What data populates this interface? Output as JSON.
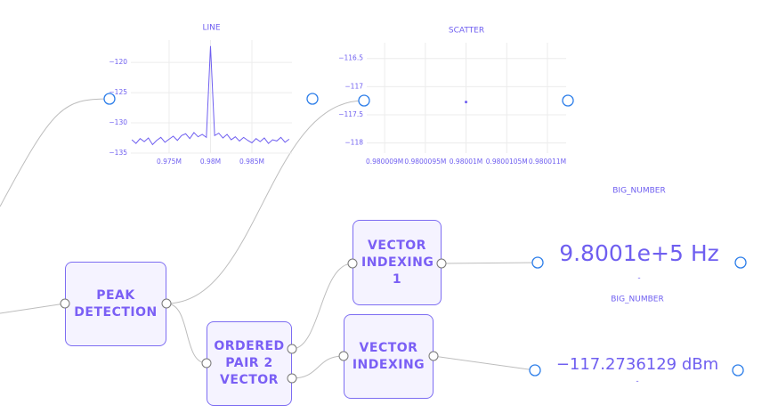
{
  "line_plot": {
    "type": "line",
    "title": "LINE",
    "x": [
      970500,
      971000,
      971500,
      972000,
      972500,
      973000,
      973500,
      974000,
      974500,
      975000,
      975500,
      976000,
      976500,
      977000,
      977500,
      978000,
      978500,
      979000,
      979500,
      980000,
      980500,
      981000,
      981500,
      982000,
      982500,
      983000,
      983500,
      984000,
      984500,
      985000,
      985500,
      986000,
      986500,
      987000,
      987500,
      988000,
      988500,
      989000,
      989500
    ],
    "y": [
      -132.8,
      -133.4,
      -132.6,
      -133.1,
      -132.5,
      -133.6,
      -132.9,
      -132.4,
      -133.2,
      -132.7,
      -132.2,
      -132.9,
      -132.1,
      -131.8,
      -132.6,
      -131.6,
      -132.3,
      -131.9,
      -132.4,
      -117.3,
      -132.1,
      -131.7,
      -132.5,
      -131.9,
      -132.8,
      -132.3,
      -133.0,
      -132.4,
      -132.9,
      -133.3,
      -132.6,
      -133.1,
      -132.5,
      -133.4,
      -132.8,
      -133.0,
      -132.4,
      -133.2,
      -132.7
    ],
    "color": "#6f5ff0",
    "xlim": [
      970380,
      989840
    ],
    "ylim": [
      -135,
      -116.3
    ],
    "xticks": [
      {
        "value": 975000,
        "label": "0.975M"
      },
      {
        "value": 980000,
        "label": "0.98M"
      },
      {
        "value": 985000,
        "label": "0.985M"
      }
    ],
    "yticks": [
      {
        "value": -120,
        "label": "−120"
      },
      {
        "value": -125,
        "label": "−125"
      },
      {
        "value": -130,
        "label": "−130"
      },
      {
        "value": -135,
        "label": "−135"
      }
    ],
    "grid": true
  },
  "scatter_plot": {
    "type": "scatter",
    "title": "SCATTER",
    "x": [
      980010
    ],
    "y": [
      -117.2736129
    ],
    "color": "#6f5ff0",
    "xlim": [
      980008.78,
      980011.23
    ],
    "ylim": [
      -118.18,
      -116.22
    ],
    "xticks": [
      {
        "value": 980009,
        "label": "0.980009M"
      },
      {
        "value": 980009.5,
        "label": "0.9800095M"
      },
      {
        "value": 980010,
        "label": "0.98001M"
      },
      {
        "value": 980010.5,
        "label": "0.9800105M"
      },
      {
        "value": 980011,
        "label": "0.980011M"
      }
    ],
    "yticks": [
      {
        "value": -116.5,
        "label": "−116.5"
      },
      {
        "value": -117,
        "label": "−117"
      },
      {
        "value": -117.5,
        "label": "−117.5"
      },
      {
        "value": -118,
        "label": "−118"
      }
    ],
    "grid": true
  },
  "nodes": [
    {
      "label": "PEAK DETECTION"
    },
    {
      "label": "ORDERED PAIR 2 VECTOR"
    },
    {
      "label": "VECTOR INDEXING 1"
    },
    {
      "label": "VECTOR INDEXING"
    }
  ],
  "big_numbers": [
    {
      "title": "BIG_NUMBER",
      "display": "9.8001e+5 Hz",
      "sub": "-"
    },
    {
      "title": "BIG_NUMBER",
      "display": "−117.2736129 dBm",
      "sub": "-"
    }
  ]
}
